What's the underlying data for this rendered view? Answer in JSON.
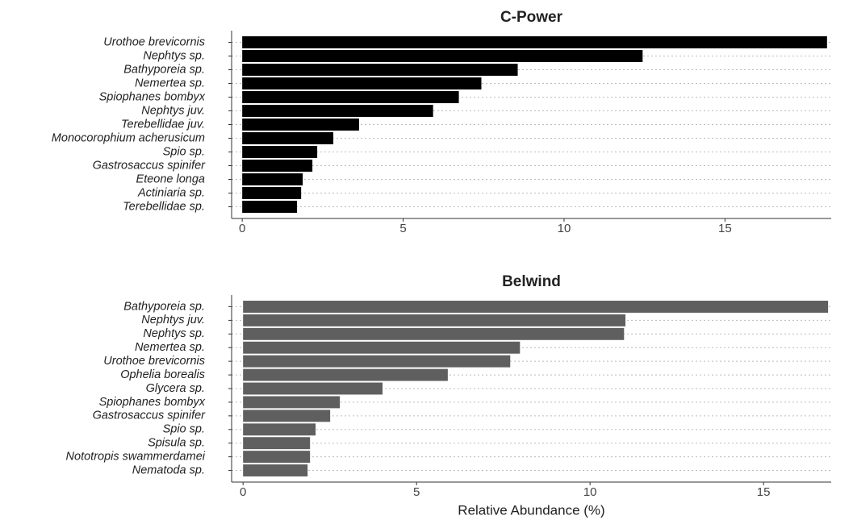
{
  "chart_data": [
    {
      "type": "bar",
      "orientation": "horizontal",
      "title": "C-Power",
      "categories": [
        "Urothoe brevicornis",
        "Nephtys sp.",
        "Bathyporeia sp.",
        "Nemertea sp.",
        "Spiophanes bombyx",
        "Nephtys juv.",
        "Terebellidae juv.",
        "Monocorophium acherusicum",
        "Spio sp.",
        "Gastrosaccus spinifer",
        "Eteone longa",
        "Actiniaria sp.",
        "Terebellidae sp."
      ],
      "values": [
        18.17,
        12.44,
        8.56,
        7.43,
        6.73,
        5.93,
        3.63,
        2.83,
        2.33,
        2.18,
        1.88,
        1.83,
        1.7
      ],
      "color": "#000000",
      "xlim": [
        -0.33,
        18.3
      ],
      "xticks": [
        0,
        5,
        10,
        15
      ],
      "grid": true
    },
    {
      "type": "bar",
      "orientation": "horizontal",
      "title": "Belwind",
      "x_label": "Relative Abundance (%)",
      "categories": [
        "Bathyporeia sp.",
        "Nephtys juv.",
        "Nephtys sp.",
        "Nemertea sp.",
        "Urothoe brevicornis",
        "Ophelia borealis",
        "Glycera sp.",
        "Spiophanes bombyx",
        "Gastrosaccus spinifer",
        "Spio sp.",
        "Spisula sp.",
        "Nototropis swammerdamei",
        "Nematoda sp."
      ],
      "values": [
        16.86,
        11.02,
        10.98,
        7.98,
        7.7,
        5.9,
        4.02,
        2.79,
        2.51,
        2.09,
        1.93,
        1.93,
        1.86
      ],
      "color": "#5f5f5f",
      "xlim": [
        -0.33,
        16.95
      ],
      "xticks": [
        0,
        5,
        10,
        15
      ],
      "grid": true
    }
  ]
}
